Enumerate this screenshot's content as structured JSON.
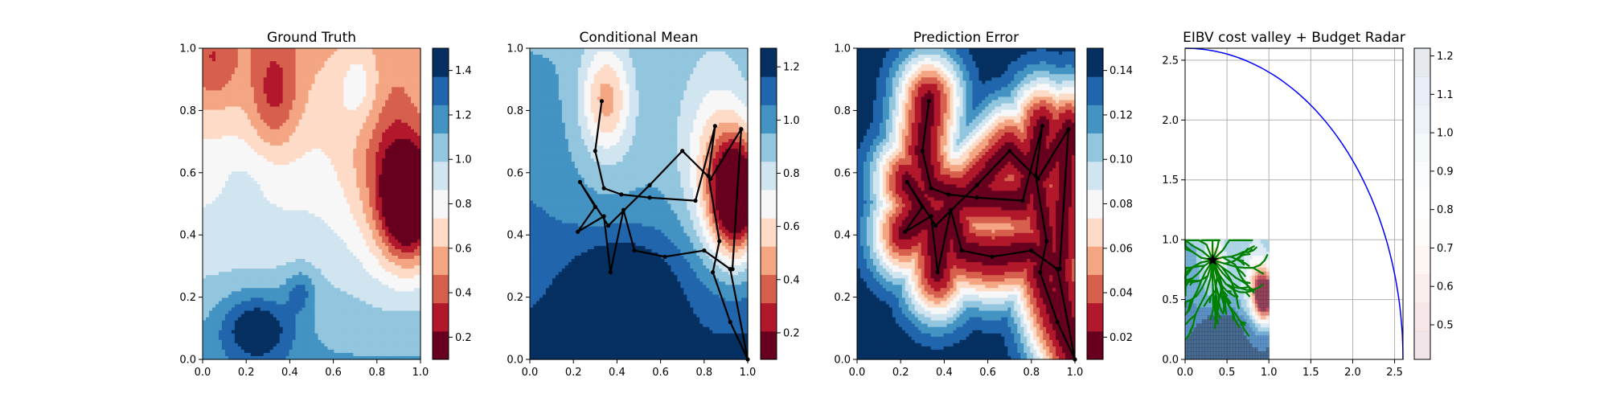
{
  "colors": {
    "rdbu": [
      "#67001f",
      "#b2182b",
      "#d6604d",
      "#f4a582",
      "#fddbc7",
      "#f7f7f7",
      "#d1e5f0",
      "#92c5de",
      "#4393c3",
      "#2166ac",
      "#053061"
    ],
    "path": "#000000",
    "tree": "#008000",
    "radar": "#0000ff"
  },
  "chart_data": [
    {
      "type": "heatmap",
      "title": "Ground Truth",
      "xlim": [
        0,
        1
      ],
      "ylim": [
        0,
        1
      ],
      "xticks": [
        "0.0",
        "0.2",
        "0.4",
        "0.6",
        "0.8",
        "1.0"
      ],
      "yticks": [
        "0.0",
        "0.2",
        "0.4",
        "0.6",
        "0.8",
        "1.0"
      ],
      "colorbar": {
        "ticks": [
          "0.2",
          "0.4",
          "0.6",
          "0.8",
          "1.0",
          "1.2",
          "1.4"
        ],
        "range": [
          0.1,
          1.5
        ]
      }
    },
    {
      "type": "heatmap",
      "title": "Conditional Mean",
      "xlim": [
        0,
        1
      ],
      "ylim": [
        0,
        1
      ],
      "xticks": [
        "0.0",
        "0.2",
        "0.4",
        "0.6",
        "0.8",
        "1.0"
      ],
      "yticks": [
        "0.0",
        "0.2",
        "0.4",
        "0.6",
        "0.8",
        "1.0"
      ],
      "colorbar": {
        "ticks": [
          "0.2",
          "0.4",
          "0.6",
          "0.8",
          "1.0",
          "1.2"
        ],
        "range": [
          0.1,
          1.27
        ]
      },
      "path": [
        [
          0.33,
          0.83
        ],
        [
          0.3,
          0.67
        ],
        [
          0.34,
          0.55
        ],
        [
          0.42,
          0.53
        ],
        [
          0.55,
          0.52
        ],
        [
          0.76,
          0.51
        ],
        [
          0.85,
          0.75
        ],
        [
          0.82,
          0.59
        ],
        [
          0.87,
          0.38
        ],
        [
          0.84,
          0.28
        ],
        [
          0.92,
          0.12
        ],
        [
          1.0,
          0.0
        ],
        [
          0.92,
          0.29
        ],
        [
          0.8,
          0.35
        ],
        [
          0.62,
          0.33
        ],
        [
          0.48,
          0.35
        ],
        [
          0.43,
          0.48
        ],
        [
          0.37,
          0.28
        ],
        [
          0.34,
          0.46
        ],
        [
          0.22,
          0.41
        ],
        [
          0.3,
          0.49
        ],
        [
          0.23,
          0.57
        ],
        [
          0.36,
          0.43
        ],
        [
          0.55,
          0.56
        ],
        [
          0.7,
          0.67
        ],
        [
          0.83,
          0.58
        ],
        [
          0.97,
          0.74
        ],
        [
          0.93,
          0.29
        ]
      ]
    },
    {
      "type": "heatmap",
      "title": "Prediction Error",
      "xlim": [
        0,
        1
      ],
      "ylim": [
        0,
        1
      ],
      "xticks": [
        "0.0",
        "0.2",
        "0.4",
        "0.6",
        "0.8",
        "1.0"
      ],
      "yticks": [
        "0.0",
        "0.2",
        "0.4",
        "0.6",
        "0.8",
        "1.0"
      ],
      "colorbar": {
        "ticks": [
          "0.02",
          "0.04",
          "0.06",
          "0.08",
          "0.10",
          "0.12",
          "0.14"
        ],
        "range": [
          0.01,
          0.15
        ]
      },
      "path": [
        [
          0.33,
          0.83
        ],
        [
          0.3,
          0.67
        ],
        [
          0.34,
          0.55
        ],
        [
          0.42,
          0.53
        ],
        [
          0.55,
          0.52
        ],
        [
          0.76,
          0.51
        ],
        [
          0.85,
          0.75
        ],
        [
          0.82,
          0.59
        ],
        [
          0.87,
          0.38
        ],
        [
          0.84,
          0.28
        ],
        [
          0.92,
          0.12
        ],
        [
          1.0,
          0.0
        ],
        [
          0.92,
          0.29
        ],
        [
          0.8,
          0.35
        ],
        [
          0.62,
          0.33
        ],
        [
          0.48,
          0.35
        ],
        [
          0.43,
          0.48
        ],
        [
          0.37,
          0.28
        ],
        [
          0.34,
          0.46
        ],
        [
          0.22,
          0.41
        ],
        [
          0.3,
          0.49
        ],
        [
          0.23,
          0.57
        ],
        [
          0.36,
          0.43
        ],
        [
          0.55,
          0.56
        ],
        [
          0.7,
          0.67
        ],
        [
          0.83,
          0.58
        ],
        [
          0.97,
          0.74
        ],
        [
          0.93,
          0.29
        ]
      ]
    },
    {
      "type": "heatmap",
      "title": "EIBV cost valley + Budget Radar",
      "xlim": [
        0,
        2.6
      ],
      "ylim": [
        0,
        2.6
      ],
      "xticks": [
        "0.0",
        "0.5",
        "1.0",
        "1.5",
        "2.0",
        "2.5"
      ],
      "yticks": [
        "0.0",
        "0.5",
        "1.0",
        "1.5",
        "2.0",
        "2.5"
      ],
      "grid": true,
      "colorbar": {
        "ticks": [
          "0.5",
          "0.6",
          "0.7",
          "0.8",
          "0.9",
          "1.0",
          "1.1",
          "1.2"
        ],
        "range": [
          0.41,
          1.22
        ]
      },
      "radar_radius": 2.6,
      "star": [
        0.33,
        0.83
      ]
    }
  ]
}
